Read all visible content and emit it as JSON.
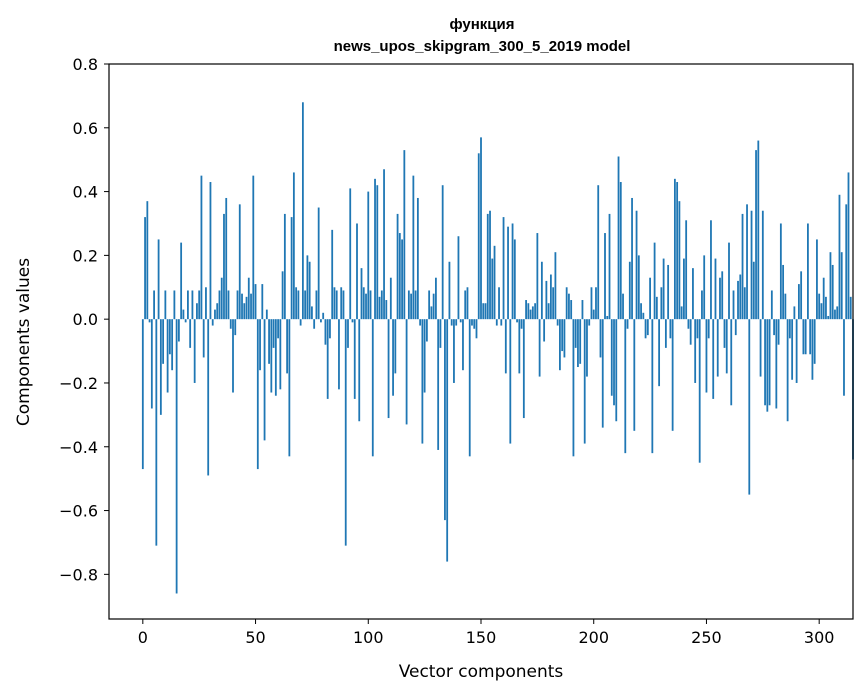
{
  "chart_data": {
    "type": "bar",
    "title_line1": "функция",
    "title_line2": "news_upos_skipgram_300_5_2019 model",
    "xlabel": "Vector components",
    "ylabel": "Components values",
    "xlim": [
      -15,
      315
    ],
    "ylim": [
      -0.94,
      0.8
    ],
    "xticks": [
      0,
      50,
      100,
      150,
      200,
      250,
      300
    ],
    "xtick_labels": [
      "0",
      "50",
      "100",
      "150",
      "200",
      "250",
      "300"
    ],
    "yticks": [
      0.8,
      0.6,
      0.4,
      0.2,
      0.0,
      -0.2,
      -0.4,
      -0.6,
      -0.8
    ],
    "ytick_labels": [
      "0.8",
      "0.6",
      "0.4",
      "0.2",
      "0.0",
      "−0.2",
      "−0.4",
      "−0.6",
      "−0.8"
    ],
    "bar_color": "#1f77b4",
    "values": [
      -0.47,
      0.32,
      0.37,
      -0.01,
      -0.28,
      0.09,
      -0.71,
      0.25,
      -0.3,
      -0.14,
      0.09,
      -0.23,
      -0.11,
      -0.16,
      0.09,
      -0.86,
      -0.07,
      0.24,
      0.03,
      -0.01,
      0.09,
      -0.09,
      0.09,
      -0.2,
      0.05,
      0.09,
      0.45,
      -0.12,
      0.1,
      -0.49,
      0.43,
      -0.02,
      0.03,
      0.05,
      0.09,
      0.13,
      0.33,
      0.38,
      0.09,
      -0.03,
      -0.23,
      -0.05,
      0.09,
      0.36,
      0.08,
      0.05,
      0.07,
      0.13,
      0.08,
      0.45,
      0.11,
      -0.47,
      -0.16,
      0.11,
      -0.38,
      0.03,
      -0.14,
      -0.23,
      -0.09,
      -0.24,
      -0.06,
      -0.22,
      0.15,
      0.33,
      -0.17,
      -0.43,
      0.32,
      0.46,
      0.1,
      0.09,
      -0.02,
      0.68,
      0.09,
      0.2,
      0.18,
      0.04,
      -0.03,
      0.09,
      0.35,
      -0.01,
      0.02,
      -0.08,
      -0.25,
      -0.06,
      0.28,
      0.1,
      0.09,
      -0.22,
      0.1,
      0.09,
      -0.71,
      -0.09,
      0.41,
      -0.01,
      -0.25,
      0.3,
      -0.32,
      0.16,
      0.1,
      0.08,
      0.4,
      0.09,
      -0.43,
      0.44,
      0.42,
      0.07,
      0.09,
      0.47,
      0.06,
      -0.31,
      0.13,
      -0.24,
      -0.17,
      0.33,
      0.27,
      0.25,
      0.53,
      -0.33,
      0.09,
      0.08,
      0.45,
      0.09,
      0.38,
      -0.02,
      -0.39,
      -0.23,
      -0.07,
      0.09,
      0.04,
      0.08,
      0.13,
      -0.41,
      -0.09,
      0.42,
      -0.63,
      -0.76,
      0.18,
      -0.02,
      -0.2,
      -0.02,
      0.26,
      -0.01,
      -0.16,
      0.09,
      0.1,
      -0.43,
      -0.02,
      -0.03,
      -0.06,
      0.52,
      0.57,
      0.05,
      0.05,
      0.33,
      0.34,
      0.19,
      0.23,
      -0.02,
      0.1,
      -0.02,
      0.32,
      -0.17,
      0.29,
      -0.39,
      0.3,
      0.25,
      -0.01,
      -0.17,
      -0.03,
      -0.31,
      0.06,
      0.05,
      0.03,
      0.04,
      0.05,
      0.27,
      -0.18,
      0.18,
      -0.07,
      0.12,
      0.05,
      0.14,
      0.1,
      0.21,
      -0.02,
      -0.16,
      -0.1,
      -0.12,
      0.1,
      0.08,
      0.06,
      -0.43,
      -0.09,
      -0.15,
      -0.14,
      0.06,
      -0.39,
      -0.18,
      -0.02,
      0.1,
      0.03,
      0.1,
      0.42,
      -0.12,
      -0.34,
      0.27,
      0.01,
      0.33,
      -0.24,
      -0.27,
      -0.32,
      0.51,
      0.43,
      0.08,
      -0.42,
      -0.03,
      0.18,
      0.38,
      -0.35,
      0.34,
      0.2,
      0.05,
      0.02,
      -0.06,
      -0.05,
      0.13,
      -0.42,
      0.24,
      0.07,
      -0.21,
      0.1,
      0.19,
      -0.09,
      0.17,
      -0.06,
      -0.35,
      0.44,
      0.43,
      0.37,
      0.04,
      0.19,
      0.31,
      -0.03,
      -0.08,
      0.16,
      -0.2,
      -0.06,
      -0.45,
      0.09,
      0.2,
      -0.23,
      -0.06,
      0.31,
      -0.25,
      0.19,
      -0.18,
      0.13,
      0.15,
      -0.09,
      -0.17,
      0.24,
      -0.27,
      0.09,
      -0.05,
      0.12,
      0.14,
      0.33,
      0.1,
      0.36,
      -0.55,
      0.34,
      0.18,
      0.53,
      0.56,
      -0.18,
      0.34,
      -0.27,
      -0.29,
      -0.27,
      0.09,
      -0.05,
      -0.28,
      -0.08,
      0.3,
      0.17,
      0.08,
      -0.32,
      -0.06,
      -0.19,
      0.04,
      -0.2,
      0.11,
      0.15,
      -0.11,
      -0.11,
      0.3,
      -0.11,
      -0.19,
      -0.14,
      0.25,
      0.08,
      0.05,
      0.13,
      0.07,
      0.01,
      0.21,
      0.17,
      0.03,
      0.04,
      0.39,
      0.21,
      -0.24,
      0.36,
      0.46,
      0.07,
      -0.44
    ]
  }
}
